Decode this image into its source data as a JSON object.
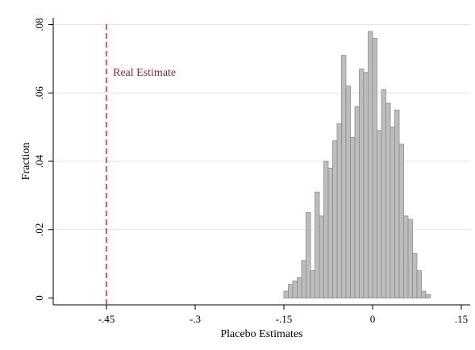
{
  "chart_data": {
    "type": "histogram",
    "xlabel": "Placebo Estimates",
    "ylabel": "Fraction",
    "xlim": [
      -0.54,
      0.165
    ],
    "ylim": [
      -0.002,
      0.082
    ],
    "xticks": [
      {
        "value": -0.45,
        "label": "-.45"
      },
      {
        "value": -0.3,
        "label": "-.3"
      },
      {
        "value": -0.15,
        "label": "-.15"
      },
      {
        "value": 0,
        "label": "0"
      },
      {
        "value": 0.15,
        "label": ".15"
      }
    ],
    "yticks": [
      {
        "value": 0,
        "label": "0"
      },
      {
        "value": 0.02,
        "label": ".02"
      },
      {
        "value": 0.04,
        "label": ".04"
      },
      {
        "value": 0.06,
        "label": ".06"
      },
      {
        "value": 0.08,
        "label": ".08"
      }
    ],
    "grid": "horizontal",
    "bin_width": 0.0075,
    "bins": [
      {
        "x": -0.15,
        "y": 0.002
      },
      {
        "x": -0.1425,
        "y": 0.004
      },
      {
        "x": -0.135,
        "y": 0.005
      },
      {
        "x": -0.1275,
        "y": 0.006
      },
      {
        "x": -0.12,
        "y": 0.011
      },
      {
        "x": -0.1125,
        "y": 0.025
      },
      {
        "x": -0.105,
        "y": 0.008
      },
      {
        "x": -0.0975,
        "y": 0.031
      },
      {
        "x": -0.09,
        "y": 0.024
      },
      {
        "x": -0.0825,
        "y": 0.04
      },
      {
        "x": -0.075,
        "y": 0.038
      },
      {
        "x": -0.0675,
        "y": 0.046
      },
      {
        "x": -0.06,
        "y": 0.051
      },
      {
        "x": -0.0525,
        "y": 0.071
      },
      {
        "x": -0.045,
        "y": 0.062
      },
      {
        "x": -0.0375,
        "y": 0.047
      },
      {
        "x": -0.03,
        "y": 0.056
      },
      {
        "x": -0.0225,
        "y": 0.067
      },
      {
        "x": -0.015,
        "y": 0.066
      },
      {
        "x": -0.0075,
        "y": 0.078
      },
      {
        "x": 0.0,
        "y": 0.076
      },
      {
        "x": 0.0075,
        "y": 0.049
      },
      {
        "x": 0.015,
        "y": 0.061
      },
      {
        "x": 0.0225,
        "y": 0.057
      },
      {
        "x": 0.03,
        "y": 0.05
      },
      {
        "x": 0.0375,
        "y": 0.055
      },
      {
        "x": 0.045,
        "y": 0.045
      },
      {
        "x": 0.0525,
        "y": 0.024
      },
      {
        "x": 0.06,
        "y": 0.023
      },
      {
        "x": 0.0675,
        "y": 0.013
      },
      {
        "x": 0.075,
        "y": 0.008
      },
      {
        "x": 0.0825,
        "y": 0.002
      },
      {
        "x": 0.09,
        "y": 0.001
      }
    ],
    "reference_line": {
      "x": -0.45,
      "label": "Real Estimate",
      "color": "#e41a1c",
      "style": "dashed"
    },
    "colors": {
      "bar_fill": "#bdbdbd",
      "bar_stroke": "#8c8c8c",
      "grid": "#e6e6e6",
      "label": "#8b2a2a"
    }
  }
}
